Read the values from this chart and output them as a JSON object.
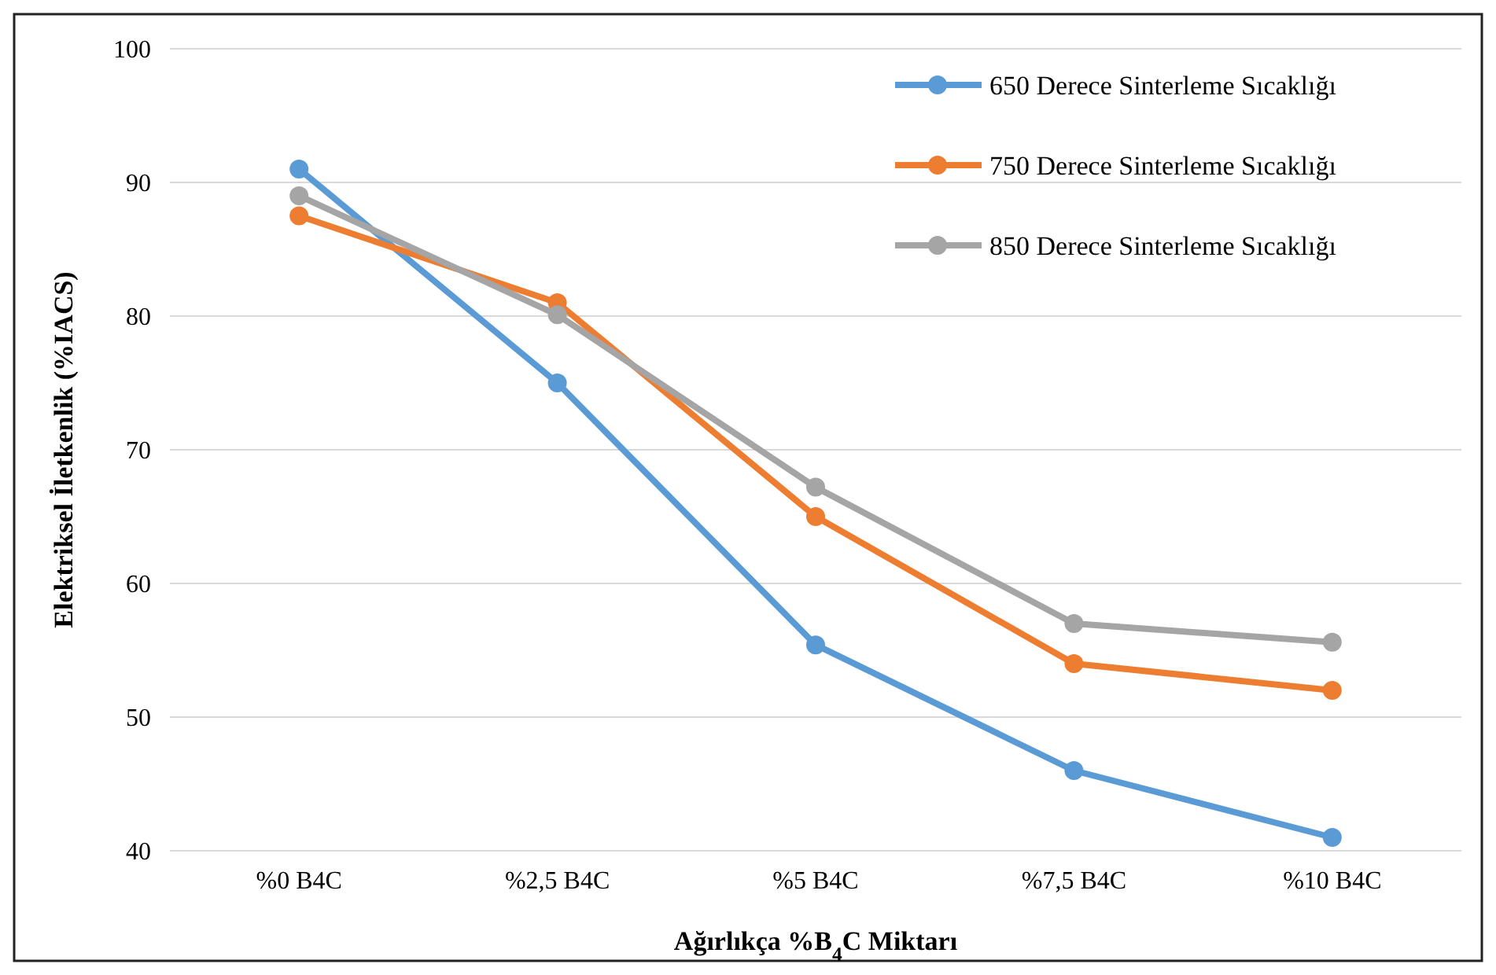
{
  "chart_data": {
    "type": "line",
    "xlabel": "Ağırlıkça %B$_{4}$C Miktarı",
    "ylabel": "Elektriksel İletkenlik (%IACS)",
    "categories": [
      "%0 B4C",
      "%2,5 B4C",
      "%5 B4C",
      "%7,5 B4C",
      "%10 B4C"
    ],
    "series": [
      {
        "name": "650 Derece Sinterleme Sıcaklığı",
        "color": "#5b9bd5",
        "values": [
          91,
          75,
          55.4,
          46,
          41
        ]
      },
      {
        "name": "750 Derece Sinterleme Sıcaklığı",
        "color": "#ed7d31",
        "values": [
          87.5,
          81,
          65,
          54,
          52
        ]
      },
      {
        "name": "850 Derece Sinterleme Sıcaklığı",
        "color": "#a5a5a5",
        "values": [
          89,
          80.1,
          67.2,
          57,
          55.6
        ]
      }
    ],
    "ylim": [
      40,
      100
    ],
    "yticks": [
      40,
      50,
      60,
      70,
      80,
      90,
      100
    ],
    "grid": "y",
    "legend": "top right",
    "marker": "circle",
    "line_style": "solid"
  }
}
